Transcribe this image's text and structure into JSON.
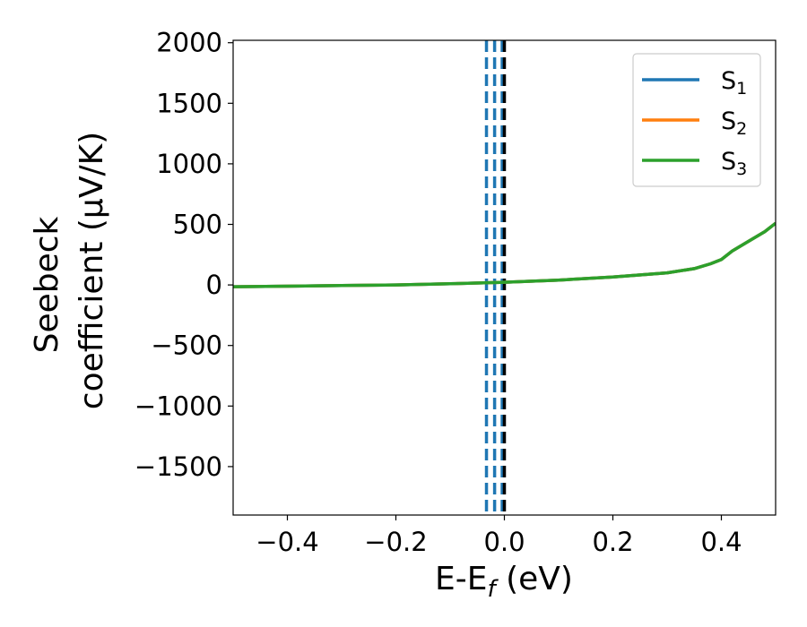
{
  "chart_data": {
    "type": "line",
    "xlabel": {
      "main": "E-E",
      "sub": "f",
      "unit": " (eV)"
    },
    "ylabel": {
      "line1": "Seebeck",
      "line2": "coefficient  (μV/K)"
    },
    "xlim": [
      -0.5,
      0.5
    ],
    "ylim": [
      -1900,
      2020
    ],
    "xticks": [
      -0.4,
      -0.2,
      0.0,
      0.2,
      0.4
    ],
    "xtick_labels": [
      "−0.4",
      "−0.2",
      "0.0",
      "0.2",
      "0.4"
    ],
    "yticks": [
      2000,
      1500,
      1000,
      500,
      0,
      -500,
      -1000,
      -1500
    ],
    "ytick_labels": [
      "2000",
      "1500",
      "1000",
      "500",
      "0",
      "−500",
      "−1000",
      "−1500"
    ],
    "grid": false,
    "legend_position": "top-right",
    "series": [
      {
        "name": {
          "base": "S",
          "sub": "1"
        },
        "color": "#1f77b4",
        "x": [
          -0.5,
          -0.4,
          -0.3,
          -0.2,
          -0.1,
          0.0,
          0.1,
          0.2,
          0.3,
          0.35,
          0.38,
          0.4,
          0.42,
          0.45,
          0.48,
          0.5
        ],
        "y": [
          -15,
          -10,
          -5,
          0,
          10,
          22,
          40,
          65,
          100,
          135,
          175,
          210,
          280,
          360,
          440,
          510
        ]
      },
      {
        "name": {
          "base": "S",
          "sub": "2"
        },
        "color": "#ff7f0e",
        "x": [
          -0.5,
          -0.4,
          -0.3,
          -0.2,
          -0.1,
          0.0,
          0.1,
          0.2,
          0.3,
          0.35,
          0.38,
          0.4,
          0.42,
          0.45,
          0.48,
          0.5
        ],
        "y": [
          -15,
          -10,
          -5,
          0,
          10,
          22,
          40,
          65,
          100,
          135,
          175,
          210,
          280,
          360,
          440,
          510
        ]
      },
      {
        "name": {
          "base": "S",
          "sub": "3"
        },
        "color": "#2ca02c",
        "x": [
          -0.5,
          -0.4,
          -0.3,
          -0.2,
          -0.1,
          0.0,
          0.1,
          0.2,
          0.3,
          0.35,
          0.38,
          0.4,
          0.42,
          0.45,
          0.48,
          0.5
        ],
        "y": [
          -15,
          -10,
          -5,
          0,
          10,
          22,
          40,
          65,
          100,
          135,
          175,
          210,
          280,
          360,
          440,
          510
        ]
      }
    ],
    "vertical_lines": [
      {
        "x": -0.033,
        "color": "#1f77b4",
        "style": "dashed"
      },
      {
        "x": -0.018,
        "color": "#1f77b4",
        "style": "dashed"
      },
      {
        "x": -0.004,
        "color": "#1f77b4",
        "style": "dashed"
      },
      {
        "x": 0.0,
        "color": "#000000",
        "style": "dashed"
      }
    ]
  }
}
